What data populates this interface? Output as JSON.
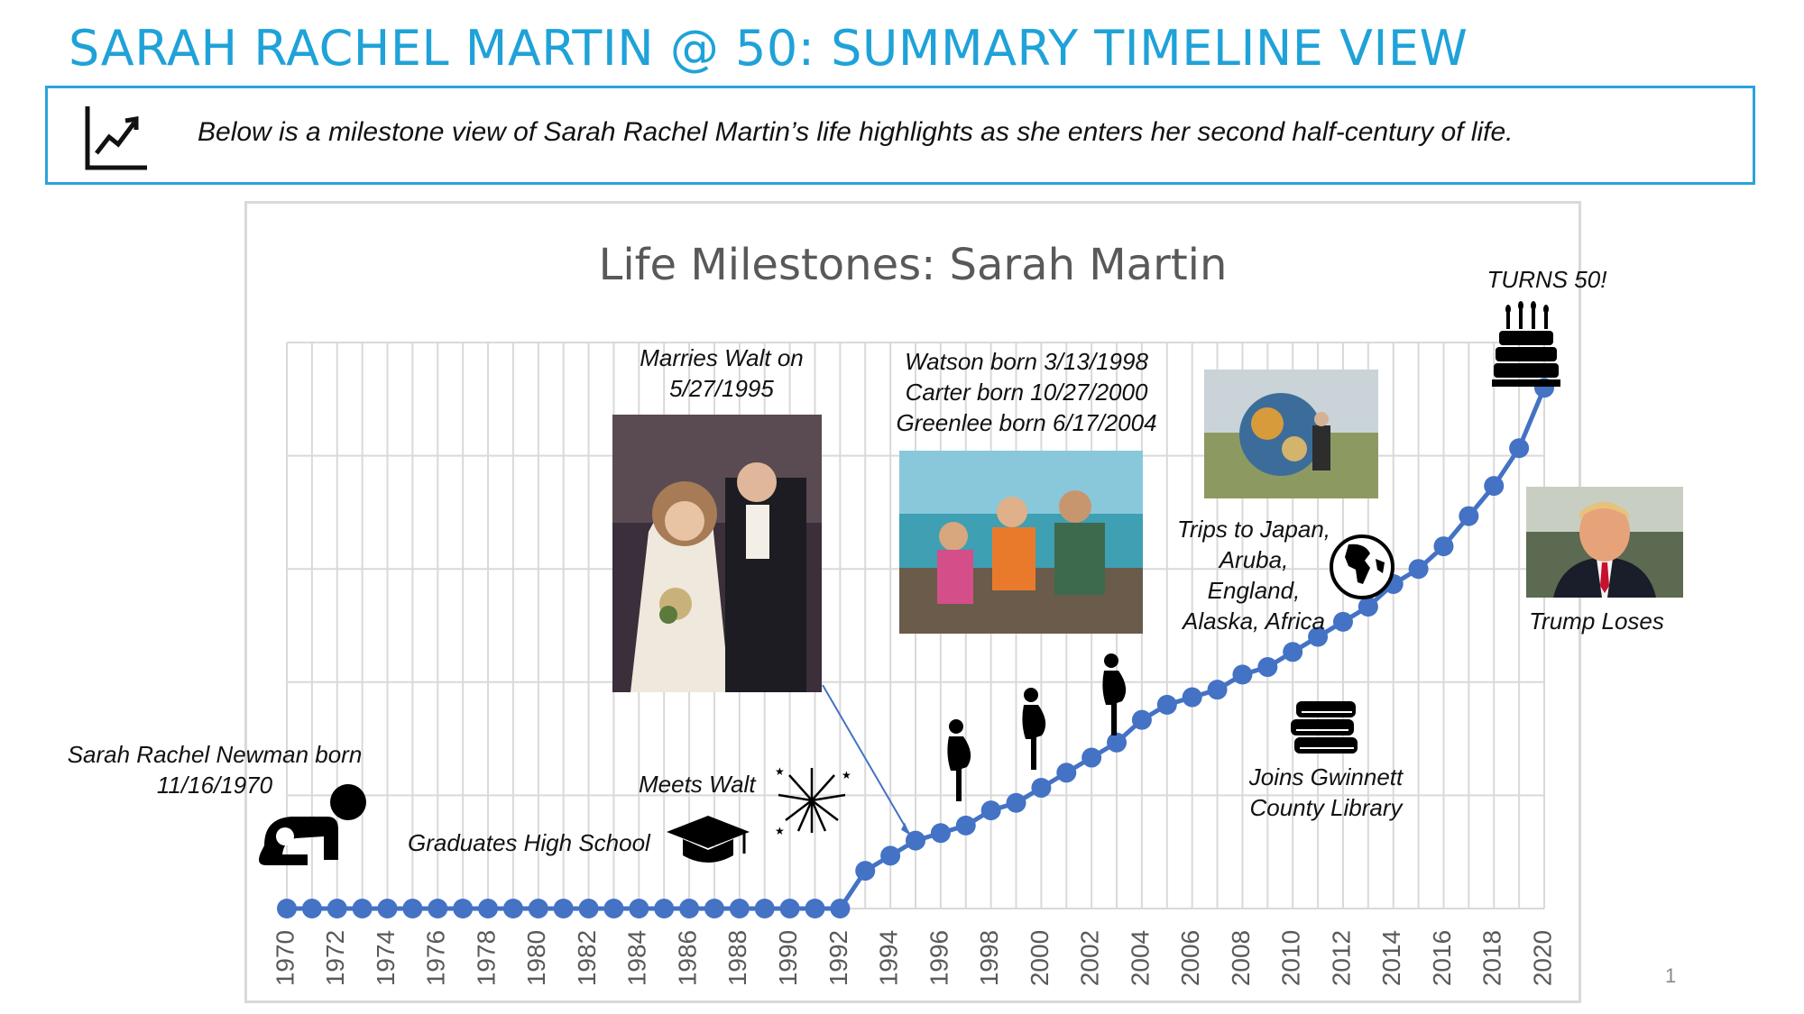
{
  "header": {
    "title": "SARAH RACHEL MARTIN @ 50: SUMMARY TIMELINE VIEW",
    "description": "Below is a milestone view of Sarah Rachel Martin’s life highlights as she enters her second half-century of life."
  },
  "page_number": "1",
  "colors": {
    "accent": "#1fa2d8",
    "series": "#4472c4",
    "grid": "#d9d9d9"
  },
  "annotations": {
    "born": "Sarah Rachel Newman born\n11/16/1970",
    "graduates": "Graduates High School",
    "meets": "Meets Walt",
    "marries": "Marries Walt on\n5/27/1995",
    "kids": "Watson born 3/13/1998\nCarter born 10/27/2000\nGreenlee born 6/17/2004",
    "trips": "Trips to Japan,\nAruba,\nEngland,\nAlaska, Africa",
    "library": "Joins Gwinnett\nCounty Library",
    "turns50": "TURNS 50!",
    "trump": "Trump Loses"
  },
  "icons": [
    "chart-trend-icon",
    "crawling-baby-icon",
    "graduation-cap-icon",
    "fireworks-icon",
    "pregnant-woman-icon",
    "globe-icon",
    "books-icon",
    "birthday-cake-icon"
  ],
  "chart_data": {
    "type": "line",
    "title": "Life Milestones: Sarah Martin",
    "x": [
      1970,
      1971,
      1972,
      1973,
      1974,
      1975,
      1976,
      1977,
      1978,
      1979,
      1980,
      1981,
      1982,
      1983,
      1984,
      1985,
      1986,
      1987,
      1988,
      1989,
      1990,
      1991,
      1992,
      1993,
      1994,
      1995,
      1996,
      1997,
      1998,
      1999,
      2000,
      2001,
      2002,
      2003,
      2004,
      2005,
      2006,
      2007,
      2008,
      2009,
      2010,
      2011,
      2012,
      2013,
      2014,
      2015,
      2016,
      2017,
      2018,
      2019,
      2020
    ],
    "values": [
      0,
      0,
      0,
      0,
      0,
      0,
      0,
      0,
      0,
      0,
      0,
      0,
      0,
      0,
      0,
      0,
      0,
      0,
      0,
      0,
      0,
      0,
      0,
      5,
      7,
      9,
      10,
      11,
      13,
      14,
      16,
      18,
      20,
      22,
      25,
      27,
      28,
      29,
      31,
      32,
      34,
      36,
      38,
      40,
      43,
      45,
      48,
      52,
      56,
      61,
      69
    ],
    "xticks": [
      "1970",
      "1972",
      "1974",
      "1976",
      "1978",
      "1980",
      "1982",
      "1984",
      "1986",
      "1988",
      "1990",
      "1992",
      "1994",
      "1996",
      "1998",
      "2000",
      "2002",
      "2004",
      "2006",
      "2008",
      "2010",
      "2012",
      "2014",
      "2016",
      "2018",
      "2020"
    ],
    "xlim": [
      1970,
      2020
    ],
    "ylim": [
      0,
      75
    ],
    "grid": true,
    "legend": "none"
  }
}
